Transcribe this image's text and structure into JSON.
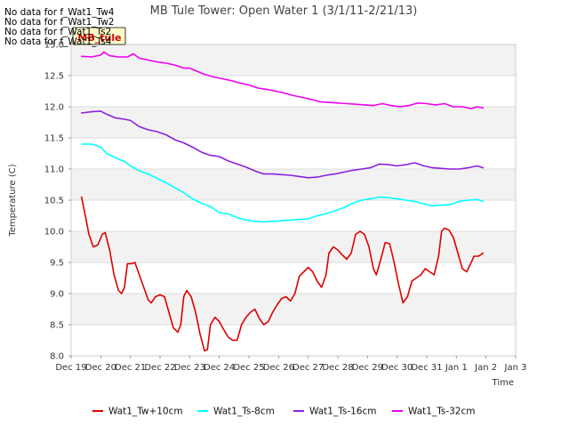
{
  "no_data_messages": [
    "No data for f_Wat1_Tw4",
    "No data for f_Wat1_Tw2",
    "No data for f_Wat1_Ts2",
    "No data for f_Wat1_Ts4"
  ],
  "badge_label": "MB_tule",
  "chart_data": {
    "type": "line",
    "title": "MB Tule Tower: Open Water 1 (3/1/11-2/21/13)",
    "xlabel": "Time",
    "ylabel": "Temperature (C)",
    "xlim": [
      0,
      15
    ],
    "ylim": [
      8.0,
      13.0
    ],
    "x_ticks": [
      0,
      1,
      2,
      3,
      4,
      5,
      6,
      7,
      8,
      9,
      10,
      11,
      12,
      13,
      14,
      15
    ],
    "x_tick_labels": [
      "Dec 19",
      "Dec 20",
      "Dec 21",
      "Dec 22",
      "Dec 23",
      "Dec 24",
      "Dec 25",
      "Dec 26",
      "Dec 27",
      "Dec 28",
      "Dec 29",
      "Dec 30",
      "Dec 31",
      "Jan 1",
      "Jan 2",
      "Jan 3"
    ],
    "y_ticks": [
      8.0,
      8.5,
      9.0,
      9.5,
      10.0,
      10.5,
      11.0,
      11.5,
      12.0,
      12.5,
      13.0
    ],
    "y_tick_labels": [
      "8.0",
      "8.5",
      "9.0",
      "9.5",
      "10.0",
      "10.5",
      "11.0",
      "11.5",
      "12.0",
      "12.5",
      "13.0"
    ],
    "grid": true,
    "legend_position": "bottom",
    "series": [
      {
        "name": "Wat1_Tw+10cm",
        "color": "#dd0000",
        "points": [
          [
            0.35,
            10.55
          ],
          [
            0.5,
            10.2
          ],
          [
            0.6,
            9.95
          ],
          [
            0.75,
            9.75
          ],
          [
            0.9,
            9.78
          ],
          [
            1.05,
            9.95
          ],
          [
            1.15,
            9.98
          ],
          [
            1.3,
            9.7
          ],
          [
            1.45,
            9.3
          ],
          [
            1.6,
            9.05
          ],
          [
            1.7,
            9.0
          ],
          [
            1.8,
            9.1
          ],
          [
            1.9,
            9.48
          ],
          [
            2.05,
            9.48
          ],
          [
            2.15,
            9.5
          ],
          [
            2.3,
            9.3
          ],
          [
            2.45,
            9.1
          ],
          [
            2.6,
            8.9
          ],
          [
            2.7,
            8.85
          ],
          [
            2.85,
            8.95
          ],
          [
            3.0,
            8.98
          ],
          [
            3.15,
            8.95
          ],
          [
            3.3,
            8.7
          ],
          [
            3.45,
            8.45
          ],
          [
            3.6,
            8.38
          ],
          [
            3.7,
            8.5
          ],
          [
            3.8,
            8.95
          ],
          [
            3.9,
            9.05
          ],
          [
            4.05,
            8.95
          ],
          [
            4.2,
            8.7
          ],
          [
            4.35,
            8.35
          ],
          [
            4.5,
            8.08
          ],
          [
            4.6,
            8.1
          ],
          [
            4.7,
            8.5
          ],
          [
            4.85,
            8.62
          ],
          [
            5.0,
            8.55
          ],
          [
            5.15,
            8.42
          ],
          [
            5.3,
            8.3
          ],
          [
            5.45,
            8.25
          ],
          [
            5.6,
            8.25
          ],
          [
            5.75,
            8.5
          ],
          [
            5.9,
            8.62
          ],
          [
            6.05,
            8.7
          ],
          [
            6.2,
            8.75
          ],
          [
            6.35,
            8.6
          ],
          [
            6.5,
            8.5
          ],
          [
            6.65,
            8.55
          ],
          [
            6.8,
            8.7
          ],
          [
            6.95,
            8.82
          ],
          [
            7.1,
            8.92
          ],
          [
            7.25,
            8.95
          ],
          [
            7.4,
            8.88
          ],
          [
            7.55,
            9.0
          ],
          [
            7.7,
            9.28
          ],
          [
            7.85,
            9.35
          ],
          [
            8.0,
            9.42
          ],
          [
            8.15,
            9.35
          ],
          [
            8.3,
            9.2
          ],
          [
            8.45,
            9.1
          ],
          [
            8.6,
            9.3
          ],
          [
            8.7,
            9.65
          ],
          [
            8.85,
            9.75
          ],
          [
            9.0,
            9.7
          ],
          [
            9.15,
            9.62
          ],
          [
            9.3,
            9.55
          ],
          [
            9.45,
            9.65
          ],
          [
            9.6,
            9.95
          ],
          [
            9.75,
            10.0
          ],
          [
            9.9,
            9.95
          ],
          [
            10.05,
            9.75
          ],
          [
            10.2,
            9.4
          ],
          [
            10.3,
            9.3
          ],
          [
            10.45,
            9.55
          ],
          [
            10.6,
            9.82
          ],
          [
            10.75,
            9.8
          ],
          [
            10.9,
            9.5
          ],
          [
            11.05,
            9.15
          ],
          [
            11.2,
            8.85
          ],
          [
            11.35,
            8.95
          ],
          [
            11.5,
            9.2
          ],
          [
            11.65,
            9.25
          ],
          [
            11.8,
            9.3
          ],
          [
            11.95,
            9.4
          ],
          [
            12.1,
            9.35
          ],
          [
            12.25,
            9.3
          ],
          [
            12.4,
            9.6
          ],
          [
            12.5,
            10.0
          ],
          [
            12.6,
            10.05
          ],
          [
            12.75,
            10.02
          ],
          [
            12.9,
            9.9
          ],
          [
            13.05,
            9.65
          ],
          [
            13.2,
            9.4
          ],
          [
            13.35,
            9.35
          ],
          [
            13.5,
            9.5
          ],
          [
            13.6,
            9.6
          ],
          [
            13.75,
            9.6
          ],
          [
            13.9,
            9.65
          ]
        ]
      },
      {
        "name": "Wat1_Ts-8cm",
        "color": "#00ffff",
        "points": [
          [
            0.35,
            11.4
          ],
          [
            0.7,
            11.4
          ],
          [
            1.0,
            11.35
          ],
          [
            1.2,
            11.25
          ],
          [
            1.5,
            11.18
          ],
          [
            1.8,
            11.12
          ],
          [
            2.0,
            11.05
          ],
          [
            2.3,
            10.97
          ],
          [
            2.6,
            10.92
          ],
          [
            2.9,
            10.85
          ],
          [
            3.2,
            10.78
          ],
          [
            3.5,
            10.7
          ],
          [
            3.8,
            10.62
          ],
          [
            4.1,
            10.52
          ],
          [
            4.4,
            10.45
          ],
          [
            4.7,
            10.4
          ],
          [
            5.0,
            10.3
          ],
          [
            5.3,
            10.28
          ],
          [
            5.6,
            10.22
          ],
          [
            5.9,
            10.18
          ],
          [
            6.2,
            10.16
          ],
          [
            6.5,
            10.15
          ],
          [
            6.8,
            10.16
          ],
          [
            7.1,
            10.17
          ],
          [
            7.4,
            10.18
          ],
          [
            7.7,
            10.19
          ],
          [
            8.0,
            10.2
          ],
          [
            8.3,
            10.25
          ],
          [
            8.6,
            10.28
          ],
          [
            8.9,
            10.33
          ],
          [
            9.2,
            10.38
          ],
          [
            9.5,
            10.45
          ],
          [
            9.8,
            10.5
          ],
          [
            10.1,
            10.52
          ],
          [
            10.4,
            10.55
          ],
          [
            10.7,
            10.54
          ],
          [
            11.0,
            10.52
          ],
          [
            11.3,
            10.5
          ],
          [
            11.6,
            10.48
          ],
          [
            11.9,
            10.44
          ],
          [
            12.2,
            10.41
          ],
          [
            12.5,
            10.42
          ],
          [
            12.8,
            10.43
          ],
          [
            13.1,
            10.48
          ],
          [
            13.4,
            10.5
          ],
          [
            13.7,
            10.51
          ],
          [
            13.9,
            10.48
          ]
        ]
      },
      {
        "name": "Wat1_Ts-16cm",
        "color": "#8b20e0",
        "points": [
          [
            0.35,
            11.9
          ],
          [
            0.7,
            11.92
          ],
          [
            1.0,
            11.93
          ],
          [
            1.2,
            11.88
          ],
          [
            1.5,
            11.82
          ],
          [
            1.8,
            11.8
          ],
          [
            2.0,
            11.78
          ],
          [
            2.3,
            11.68
          ],
          [
            2.6,
            11.63
          ],
          [
            2.9,
            11.6
          ],
          [
            3.2,
            11.55
          ],
          [
            3.5,
            11.47
          ],
          [
            3.8,
            11.42
          ],
          [
            4.1,
            11.35
          ],
          [
            4.4,
            11.27
          ],
          [
            4.7,
            11.22
          ],
          [
            5.0,
            11.2
          ],
          [
            5.3,
            11.13
          ],
          [
            5.6,
            11.08
          ],
          [
            5.9,
            11.03
          ],
          [
            6.2,
            10.97
          ],
          [
            6.5,
            10.92
          ],
          [
            6.8,
            10.92
          ],
          [
            7.1,
            10.91
          ],
          [
            7.4,
            10.9
          ],
          [
            7.7,
            10.88
          ],
          [
            8.0,
            10.86
          ],
          [
            8.3,
            10.87
          ],
          [
            8.6,
            10.9
          ],
          [
            8.9,
            10.92
          ],
          [
            9.2,
            10.95
          ],
          [
            9.5,
            10.98
          ],
          [
            9.8,
            11.0
          ],
          [
            10.1,
            11.02
          ],
          [
            10.4,
            11.08
          ],
          [
            10.7,
            11.07
          ],
          [
            11.0,
            11.05
          ],
          [
            11.3,
            11.07
          ],
          [
            11.6,
            11.1
          ],
          [
            11.9,
            11.05
          ],
          [
            12.2,
            11.02
          ],
          [
            12.5,
            11.01
          ],
          [
            12.8,
            11.0
          ],
          [
            13.1,
            11.0
          ],
          [
            13.4,
            11.02
          ],
          [
            13.7,
            11.05
          ],
          [
            13.9,
            11.02
          ]
        ]
      },
      {
        "name": "Wat1_Ts-32cm",
        "color": "#ee00ee",
        "points": [
          [
            0.35,
            12.81
          ],
          [
            0.7,
            12.8
          ],
          [
            1.0,
            12.83
          ],
          [
            1.1,
            12.88
          ],
          [
            1.3,
            12.82
          ],
          [
            1.6,
            12.8
          ],
          [
            1.9,
            12.8
          ],
          [
            2.1,
            12.85
          ],
          [
            2.3,
            12.78
          ],
          [
            2.6,
            12.75
          ],
          [
            2.9,
            12.72
          ],
          [
            3.2,
            12.7
          ],
          [
            3.5,
            12.67
          ],
          [
            3.8,
            12.62
          ],
          [
            4.0,
            12.62
          ],
          [
            4.2,
            12.58
          ],
          [
            4.5,
            12.52
          ],
          [
            4.8,
            12.48
          ],
          [
            5.1,
            12.45
          ],
          [
            5.4,
            12.42
          ],
          [
            5.7,
            12.38
          ],
          [
            6.0,
            12.35
          ],
          [
            6.3,
            12.3
          ],
          [
            6.6,
            12.28
          ],
          [
            6.9,
            12.25
          ],
          [
            7.2,
            12.22
          ],
          [
            7.5,
            12.18
          ],
          [
            7.8,
            12.15
          ],
          [
            8.1,
            12.12
          ],
          [
            8.4,
            12.08
          ],
          [
            8.7,
            12.07
          ],
          [
            9.0,
            12.06
          ],
          [
            9.3,
            12.05
          ],
          [
            9.6,
            12.04
          ],
          [
            9.9,
            12.03
          ],
          [
            10.2,
            12.02
          ],
          [
            10.5,
            12.05
          ],
          [
            10.8,
            12.02
          ],
          [
            11.1,
            12.0
          ],
          [
            11.4,
            12.02
          ],
          [
            11.7,
            12.06
          ],
          [
            12.0,
            12.05
          ],
          [
            12.3,
            12.03
          ],
          [
            12.6,
            12.05
          ],
          [
            12.9,
            12.0
          ],
          [
            13.2,
            12.0
          ],
          [
            13.5,
            11.97
          ],
          [
            13.7,
            12.0
          ],
          [
            13.9,
            11.98
          ]
        ]
      }
    ]
  }
}
